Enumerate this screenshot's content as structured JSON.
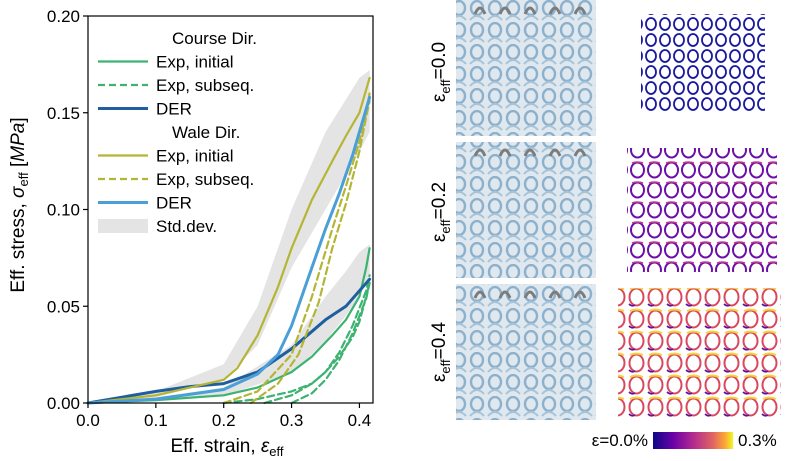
{
  "chart_data": {
    "type": "line",
    "xlabel": "Eff. strain, ε_eff",
    "ylabel": "Eff. stress, σ_eff [MPa]",
    "xlim": [
      0.0,
      0.42
    ],
    "ylim": [
      0.0,
      0.2
    ],
    "xticks": [
      "0.0",
      "0.1",
      "0.2",
      "0.3",
      "0.4"
    ],
    "yticks": [
      "0.00",
      "0.05",
      "0.10",
      "0.15",
      "0.20"
    ],
    "grid": false,
    "legend_placement": "top-left",
    "legend": [
      {
        "label": "Course Dir.",
        "kind": "header"
      },
      {
        "label": "Exp, initial",
        "kind": "solid",
        "color": "#3cb371"
      },
      {
        "label": "Exp, subseq.",
        "kind": "dashed",
        "color": "#3cb371"
      },
      {
        "label": "DER",
        "kind": "solid-thick",
        "color": "#1f5f9f"
      },
      {
        "label": "Wale Dir.",
        "kind": "header"
      },
      {
        "label": "Exp, initial",
        "kind": "solid",
        "color": "#b5b535"
      },
      {
        "label": "Exp, subseq.",
        "kind": "dashed",
        "color": "#b5b535"
      },
      {
        "label": "DER",
        "kind": "solid-thick",
        "color": "#4a9fd6"
      },
      {
        "label": "Std.dev.",
        "kind": "band",
        "color": "#e4e4e4"
      }
    ],
    "bands": [
      {
        "series": "Wale Exp, initial band",
        "x": [
          0.0,
          0.1,
          0.2,
          0.25,
          0.3,
          0.35,
          0.4,
          0.415
        ],
        "lower": [
          0.0,
          0.003,
          0.012,
          0.03,
          0.07,
          0.1,
          0.13,
          0.14
        ],
        "upper": [
          0.0,
          0.006,
          0.02,
          0.05,
          0.1,
          0.14,
          0.168,
          0.172
        ]
      },
      {
        "series": "Course Exp, initial band",
        "x": [
          0.0,
          0.1,
          0.2,
          0.3,
          0.35,
          0.38,
          0.4,
          0.415
        ],
        "lower": [
          0.0,
          0.001,
          0.004,
          0.015,
          0.032,
          0.045,
          0.055,
          0.065
        ],
        "upper": [
          0.0,
          0.003,
          0.008,
          0.03,
          0.055,
          0.068,
          0.078,
          0.082
        ]
      }
    ],
    "series": [
      {
        "name": "Exp, initial (Course)",
        "color": "#3cb371",
        "dash": false,
        "x": [
          0.0,
          0.1,
          0.2,
          0.25,
          0.3,
          0.33,
          0.36,
          0.38,
          0.4,
          0.41,
          0.415
        ],
        "y": [
          0.0,
          0.0015,
          0.004,
          0.008,
          0.016,
          0.024,
          0.035,
          0.043,
          0.055,
          0.07,
          0.08
        ]
      },
      {
        "name": "Exp, subseq. (Course)",
        "color": "#3cb371",
        "dash": true,
        "x": [
          0.2,
          0.25,
          0.3,
          0.33,
          0.35,
          0.37,
          0.39,
          0.4,
          0.41,
          0.415
        ],
        "y": [
          0.0,
          0.002,
          0.006,
          0.01,
          0.016,
          0.024,
          0.034,
          0.042,
          0.055,
          0.062
        ]
      },
      {
        "name": "Exp, subseq. (Course) 2",
        "color": "#3cb371",
        "dash": true,
        "x": [
          0.26,
          0.3,
          0.33,
          0.35,
          0.37,
          0.39,
          0.41,
          0.415
        ],
        "y": [
          0.0,
          0.004,
          0.01,
          0.016,
          0.026,
          0.04,
          0.058,
          0.066
        ]
      },
      {
        "name": "Exp, subseq. (Course) 3",
        "color": "#3cb371",
        "dash": true,
        "x": [
          0.3,
          0.33,
          0.35,
          0.37,
          0.39,
          0.41,
          0.415
        ],
        "y": [
          0.0,
          0.005,
          0.012,
          0.022,
          0.036,
          0.054,
          0.062
        ]
      },
      {
        "name": "DER (Course)",
        "color": "#1f5f9f",
        "dash": false,
        "thick": true,
        "x": [
          0.0,
          0.05,
          0.1,
          0.15,
          0.2,
          0.25,
          0.3,
          0.35,
          0.38,
          0.4,
          0.415
        ],
        "y": [
          0.0,
          0.003,
          0.006,
          0.0085,
          0.01,
          0.016,
          0.028,
          0.043,
          0.05,
          0.058,
          0.064
        ]
      },
      {
        "name": "Exp, initial (Wale)",
        "color": "#b5b535",
        "dash": false,
        "x": [
          0.0,
          0.1,
          0.2,
          0.22,
          0.25,
          0.28,
          0.3,
          0.33,
          0.36,
          0.38,
          0.4,
          0.41,
          0.415
        ],
        "y": [
          0.0,
          0.004,
          0.012,
          0.018,
          0.035,
          0.06,
          0.08,
          0.105,
          0.125,
          0.138,
          0.15,
          0.162,
          0.168
        ]
      },
      {
        "name": "Exp, subseq. (Wale)",
        "color": "#b5b535",
        "dash": true,
        "x": [
          0.2,
          0.25,
          0.3,
          0.33,
          0.36,
          0.38,
          0.4,
          0.41,
          0.415
        ],
        "y": [
          0.0,
          0.006,
          0.025,
          0.055,
          0.09,
          0.112,
          0.135,
          0.15,
          0.16
        ]
      },
      {
        "name": "Exp, subseq. (Wale) 2",
        "color": "#b5b535",
        "dash": true,
        "x": [
          0.24,
          0.28,
          0.31,
          0.34,
          0.36,
          0.38,
          0.4,
          0.41,
          0.415
        ],
        "y": [
          0.0,
          0.01,
          0.025,
          0.052,
          0.08,
          0.103,
          0.13,
          0.148,
          0.156
        ]
      },
      {
        "name": "DER (Wale)",
        "color": "#4a9fd6",
        "dash": false,
        "thick": true,
        "x": [
          0.0,
          0.1,
          0.2,
          0.25,
          0.28,
          0.3,
          0.33,
          0.35,
          0.37,
          0.39,
          0.4,
          0.41,
          0.415
        ],
        "y": [
          0.0,
          0.002,
          0.007,
          0.015,
          0.025,
          0.04,
          0.07,
          0.09,
          0.108,
          0.128,
          0.14,
          0.152,
          0.158
        ]
      }
    ]
  },
  "panels": {
    "rows": [
      {
        "label_main": "ε",
        "label_sub": "eff",
        "label_value": "=0.0"
      },
      {
        "label_main": "ε",
        "label_sub": "eff",
        "label_value": "=0.2"
      },
      {
        "label_main": "ε",
        "label_sub": "eff",
        "label_value": "=0.4"
      }
    ],
    "colorbar": {
      "min_label": "ε=0.0%",
      "max_label": "0.3%",
      "colormap": "plasma"
    }
  }
}
